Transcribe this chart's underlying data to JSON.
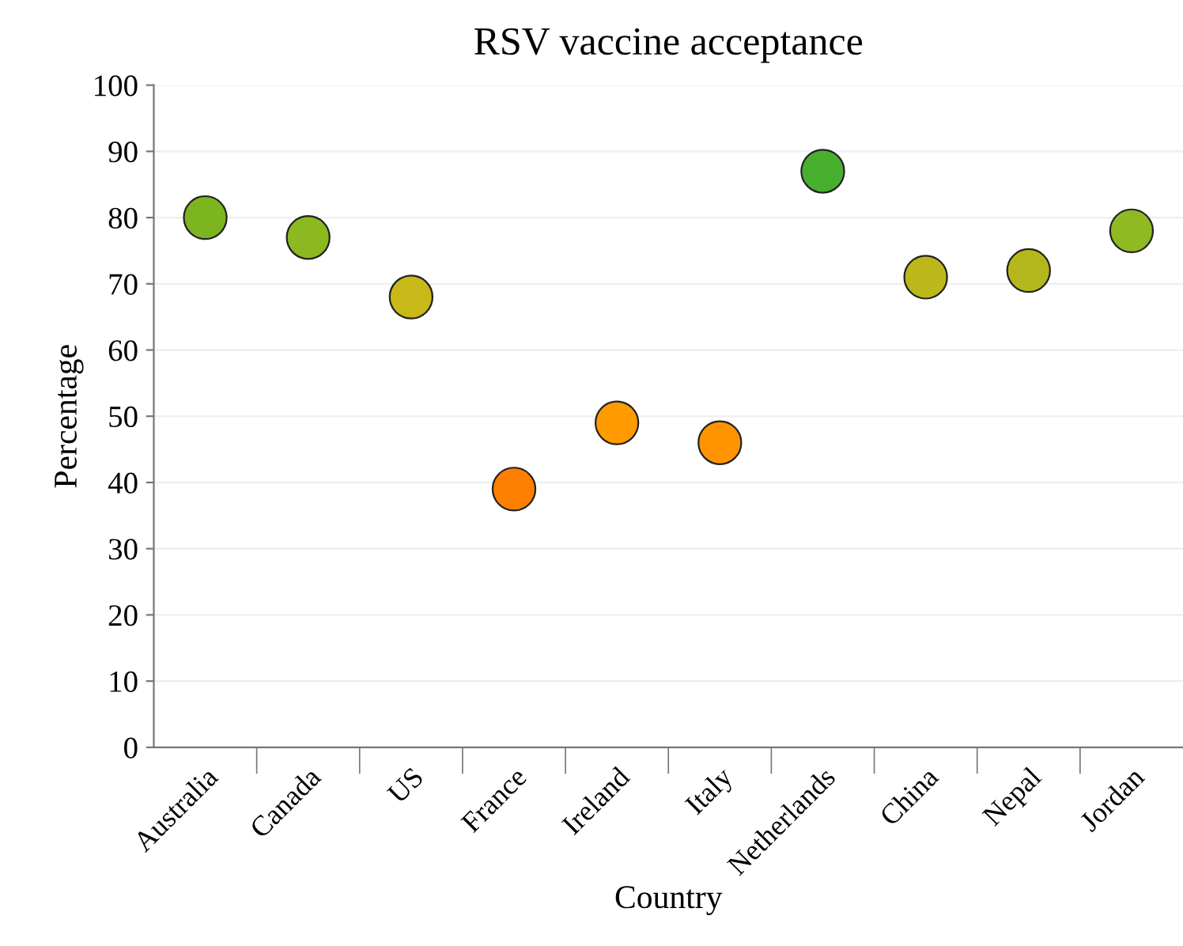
{
  "chart_data": {
    "type": "scatter",
    "title": "RSV vaccine acceptance",
    "xlabel": "Country",
    "ylabel": "Percentage",
    "categories": [
      "Australia",
      "Canada",
      "US",
      "France",
      "Ireland",
      "Italy",
      "Netherlands",
      "China",
      "Nepal",
      "Jordan"
    ],
    "values": [
      80,
      77,
      68,
      39,
      49,
      46,
      87,
      71,
      72,
      78
    ],
    "colors": [
      "#7db520",
      "#8cb820",
      "#c8b818",
      "#ff8000",
      "#ff9a00",
      "#ff9400",
      "#46b02e",
      "#bcb81b",
      "#b3b71b",
      "#8fba22"
    ],
    "ylim": [
      0,
      100
    ],
    "yticks": [
      0,
      10,
      20,
      30,
      40,
      50,
      60,
      70,
      80,
      90,
      100
    ],
    "grid": "y",
    "marker": "circle"
  }
}
